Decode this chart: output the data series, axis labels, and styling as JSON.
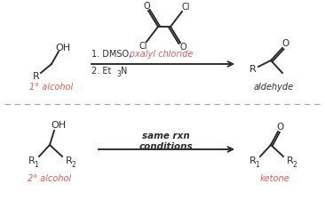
{
  "bg_color": "#ffffff",
  "line_color": "#2d2d2d",
  "red_color": "#d95f5f",
  "arrow_color": "#2d2d2d",
  "dashed_line_color": "#aaaaaa",
  "fig_width": 3.66,
  "fig_height": 2.34,
  "dpi": 100,
  "top_reaction": {
    "reagent_line1": "1. DMSO, ",
    "reagent_line1_colored": "oxalyl chloride",
    "reagent_line2": "2. Et",
    "reagent_line2_sub": "3",
    "reagent_line2_end": "N",
    "reactant_label": "1° alcohol",
    "product_label": "aldehyde"
  },
  "bottom_reaction": {
    "reagent_label1": "same rxn",
    "reagent_label2": "conditions",
    "reactant_label": "2° alcohol",
    "product_label": "ketone"
  }
}
